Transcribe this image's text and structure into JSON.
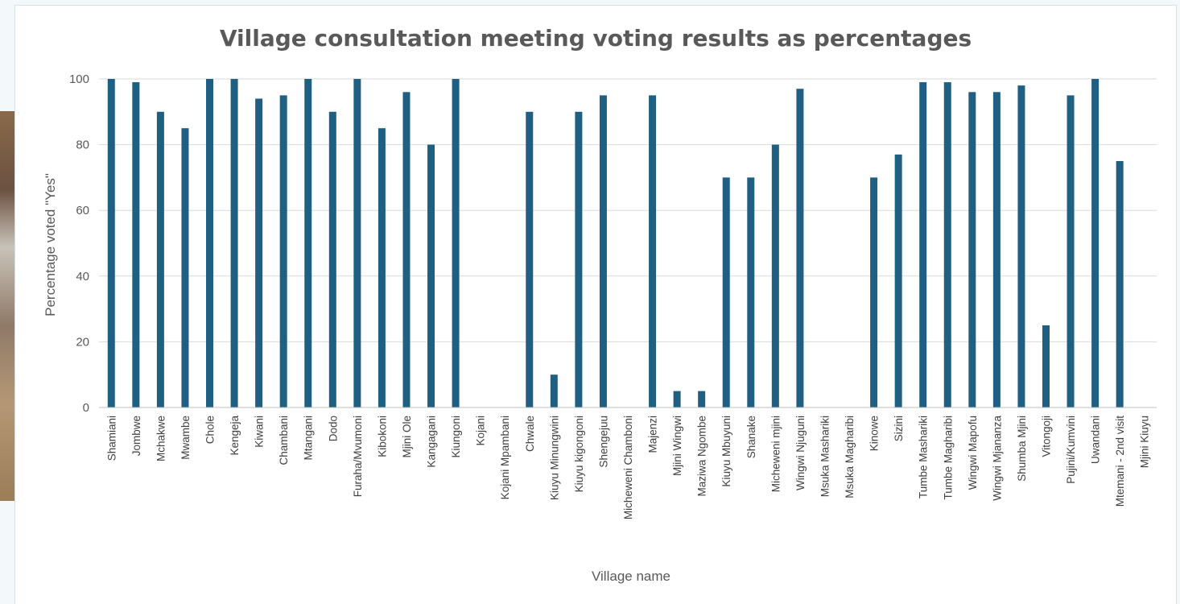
{
  "chart_data": {
    "type": "bar",
    "title": "Village consultation meeting voting results as percentages",
    "xlabel": "Village name",
    "ylabel": "Percentage voted \"Yes\"",
    "ylim": [
      0,
      100
    ],
    "yticks": [
      "0",
      "20",
      "40",
      "60",
      "80",
      "100"
    ],
    "grid": true,
    "legend": "none",
    "bar_color": "#1f5f82",
    "categories": [
      "Shamiani",
      "Jombwe",
      "Mchakwe",
      "Mwambe",
      "Chole",
      "Kengeja",
      "Kiwani",
      "Chambani",
      "Mtangani",
      "Dodo",
      "Furaha/Mvumoni",
      "Kibokoni",
      "Mjini Ole",
      "Kangagani",
      "Kiungoni",
      "Kojani",
      "Kojani Mpambani",
      "Chwale",
      "Kiuyu Minungwini",
      "Kiuyu kigongoni",
      "Shengejuu",
      "Micheweni Chamboni",
      "Majenzi",
      "Mjini Wingwi",
      "Maziwa Ngombe",
      "Kiuyu Mbuyuni",
      "Shanake",
      "Micheweni mjini",
      "Wingwi Njuguni",
      "Msuka Mashariki",
      "Msuka Magharibi",
      "Kinowe",
      "Sizini",
      "Tumbe Mashariki",
      "Tumbe Magharibi",
      "Wingwi Mapofu",
      "Wingwi Mjananza",
      "Shumba Mjini",
      "Vitongoji",
      "Pujini/Kumvini",
      "Uwandani",
      "Mtemani - 2nd visit",
      "Mjini Kiuyu"
    ],
    "values": [
      100,
      99,
      90,
      85,
      100,
      100,
      94,
      95,
      100,
      90,
      100,
      85,
      96,
      80,
      100,
      0,
      0,
      90,
      10,
      90,
      95,
      0,
      95,
      5,
      5,
      70,
      70,
      80,
      97,
      0,
      0,
      70,
      77,
      99,
      99,
      96,
      96,
      98,
      25,
      95,
      100,
      75,
      0
    ]
  },
  "colors": {
    "background": "#f3f8fb",
    "card": "#ffffff",
    "grid": "#d9d9d9",
    "text": "#595959"
  }
}
